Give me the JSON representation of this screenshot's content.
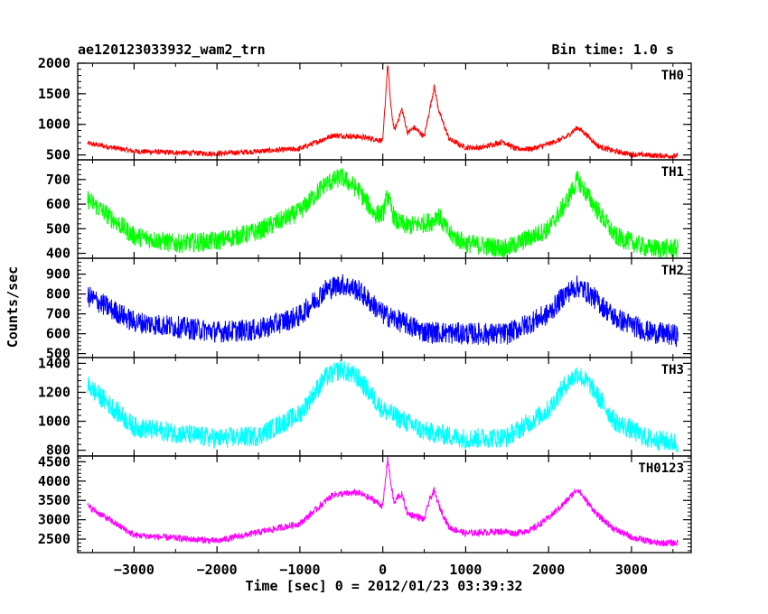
{
  "header": {
    "title": "ae120123033932_wam2_trn",
    "bin_time": "Bin time: 1.0 s"
  },
  "chart_data": {
    "type": "line",
    "title": "ae120123033932_wam2_trn",
    "xlabel": "Time [sec] 0 = 2012/01/23 03:39:32",
    "ylabel": "Counts/sec",
    "xlim": [
      -3680,
      3720
    ],
    "x_ticks": [
      -3000,
      -2000,
      -1000,
      0,
      1000,
      2000,
      3000
    ],
    "x_range_data": [
      -3560,
      3560
    ],
    "grid": false,
    "panels": [
      {
        "name": "TH0",
        "color": "#ff0000",
        "ylim": [
          420,
          2000
        ],
        "y_ticks": [
          500,
          1000,
          1500,
          2000
        ],
        "noise": 55,
        "series": {
          "x": [
            -3560,
            -3000,
            -2000,
            -1000,
            -600,
            -300,
            -100,
            0,
            60,
            100,
            140,
            180,
            230,
            300,
            380,
            500,
            560,
            620,
            680,
            800,
            1000,
            1200,
            1450,
            1600,
            1800,
            2000,
            2200,
            2350,
            2450,
            2600,
            2800,
            3000,
            3300,
            3560
          ],
          "y": [
            690,
            560,
            520,
            600,
            820,
            800,
            760,
            730,
            2000,
            1250,
            900,
            1050,
            1250,
            860,
            950,
            800,
            1200,
            1620,
            1200,
            760,
            620,
            620,
            720,
            600,
            600,
            680,
            780,
            950,
            840,
            640,
            560,
            510,
            490,
            480
          ]
        }
      },
      {
        "name": "TH1",
        "color": "#00ff00",
        "ylim": [
          380,
          780
        ],
        "y_ticks": [
          400,
          500,
          600,
          700
        ],
        "noise": 50,
        "series": {
          "x": [
            -3560,
            -3000,
            -2500,
            -2000,
            -1500,
            -1000,
            -700,
            -500,
            -300,
            -100,
            0,
            60,
            100,
            160,
            300,
            600,
            660,
            800,
            1000,
            1500,
            2000,
            2200,
            2350,
            2500,
            2800,
            3200,
            3560
          ],
          "y": [
            620,
            470,
            440,
            450,
            490,
            570,
            680,
            710,
            660,
            560,
            560,
            640,
            580,
            530,
            510,
            530,
            560,
            480,
            440,
            420,
            500,
            600,
            700,
            620,
            470,
            420,
            420
          ]
        }
      },
      {
        "name": "TH2",
        "color": "#0000ff",
        "ylim": [
          480,
          980
        ],
        "y_ticks": [
          500,
          600,
          700,
          800,
          900
        ],
        "noise": 70,
        "series": {
          "x": [
            -3560,
            -3000,
            -2000,
            -1500,
            -1000,
            -700,
            -500,
            -300,
            0,
            500,
            1000,
            1500,
            2000,
            2200,
            2350,
            2500,
            2800,
            3200,
            3560
          ],
          "y": [
            790,
            660,
            610,
            620,
            690,
            820,
            850,
            820,
            700,
            610,
            600,
            600,
            700,
            800,
            840,
            800,
            680,
            610,
            590
          ]
        }
      },
      {
        "name": "TH3",
        "color": "#00ffff",
        "ylim": [
          760,
          1440
        ],
        "y_ticks": [
          800,
          1000,
          1200,
          1400
        ],
        "noise": 90,
        "series": {
          "x": [
            -3560,
            -3000,
            -2000,
            -1500,
            -1000,
            -700,
            -500,
            -300,
            0,
            500,
            1000,
            1500,
            2000,
            2200,
            2350,
            2500,
            2800,
            3200,
            3560
          ],
          "y": [
            1250,
            960,
            880,
            900,
            1050,
            1300,
            1360,
            1300,
            1080,
            930,
            880,
            890,
            1080,
            1250,
            1330,
            1250,
            1000,
            880,
            850
          ]
        }
      },
      {
        "name": "TH0123",
        "color": "#ff00ff",
        "ylim": [
          2150,
          4650
        ],
        "y_ticks": [
          2500,
          3000,
          3500,
          4000,
          4500
        ],
        "noise": 110,
        "series": {
          "x": [
            -3560,
            -3000,
            -2000,
            -1000,
            -600,
            -300,
            -100,
            0,
            60,
            100,
            140,
            180,
            230,
            300,
            400,
            500,
            560,
            620,
            680,
            800,
            1000,
            1450,
            1600,
            1800,
            2000,
            2200,
            2350,
            2450,
            2600,
            2800,
            3000,
            3300,
            3560
          ],
          "y": [
            3350,
            2600,
            2450,
            2900,
            3650,
            3700,
            3500,
            3350,
            4600,
            3900,
            3400,
            3600,
            3650,
            3150,
            3100,
            3000,
            3500,
            3750,
            3350,
            2800,
            2650,
            2700,
            2650,
            2750,
            3050,
            3450,
            3800,
            3500,
            3100,
            2750,
            2550,
            2400,
            2400
          ]
        }
      }
    ]
  }
}
